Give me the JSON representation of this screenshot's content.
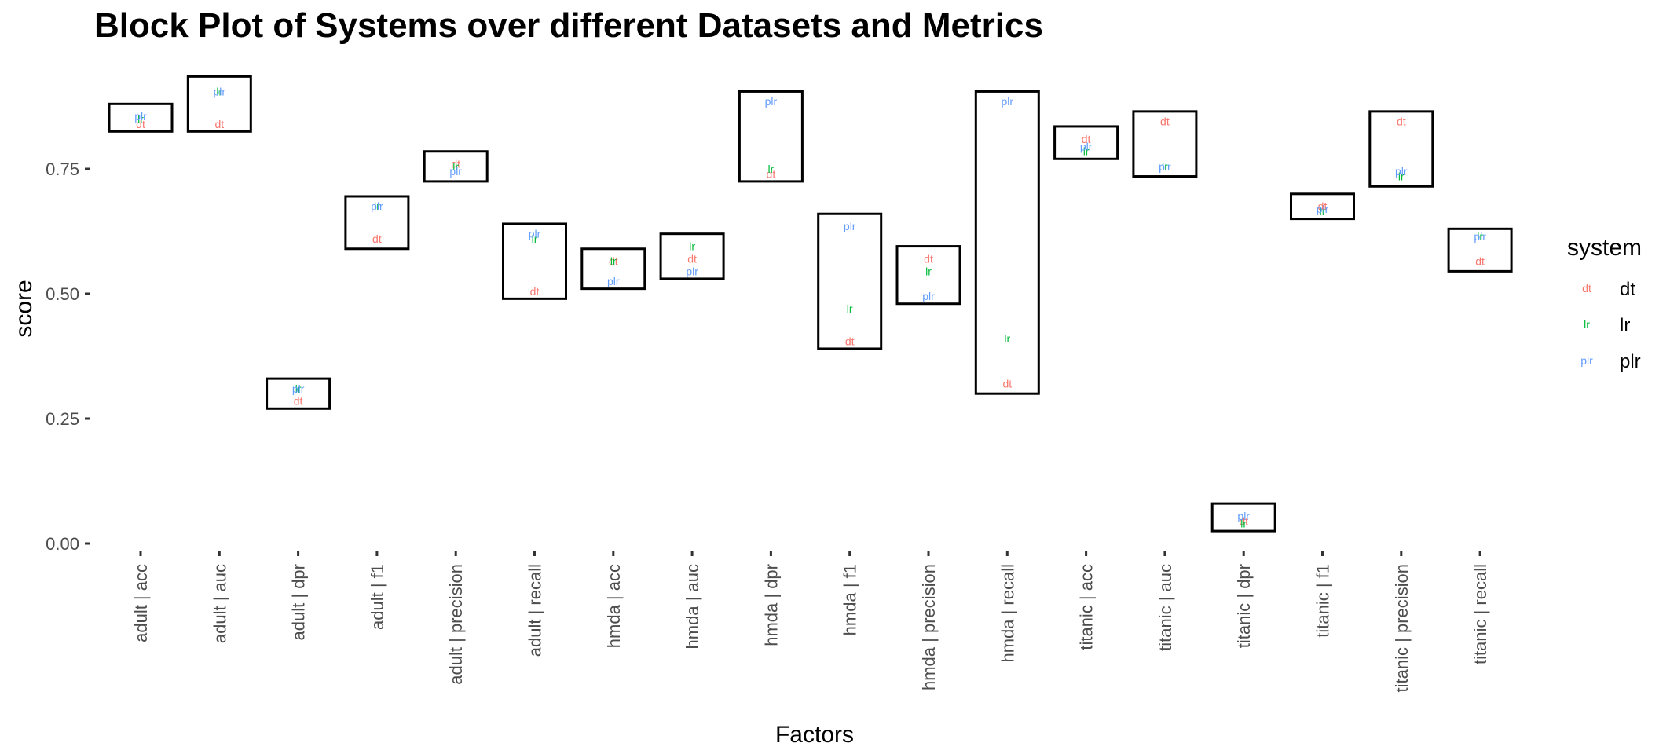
{
  "chart_data": {
    "type": "block",
    "title": "Block Plot of Systems over different Datasets and Metrics",
    "xlabel": "Factors",
    "ylabel": "score",
    "ylim": [
      0,
      0.95
    ],
    "y_ticks": [
      0.0,
      0.25,
      0.5,
      0.75
    ],
    "y_tick_labels": [
      "0.00",
      "0.25",
      "0.50",
      "0.75"
    ],
    "grid": false,
    "legend": {
      "title": "system",
      "placement": "right",
      "entries": [
        {
          "key": "dt",
          "label": "dt",
          "color": "#F8766D"
        },
        {
          "key": "lr",
          "label": "lr",
          "color": "#00BA38"
        },
        {
          "key": "plr",
          "label": "plr",
          "color": "#619CFF"
        }
      ]
    },
    "categories": [
      "adult | acc",
      "adult | auc",
      "adult | dpr",
      "adult | f1",
      "adult | precision",
      "adult | recall",
      "hmda | acc",
      "hmda | auc",
      "hmda | dpr",
      "hmda | f1",
      "hmda | precision",
      "hmda | recall",
      "titanic | acc",
      "titanic | auc",
      "titanic | dpr",
      "titanic | f1",
      "titanic | precision",
      "titanic | recall"
    ],
    "blocks": [
      [
        0.825,
        0.88
      ],
      [
        0.825,
        0.935
      ],
      [
        0.27,
        0.33
      ],
      [
        0.59,
        0.695
      ],
      [
        0.725,
        0.785
      ],
      [
        0.49,
        0.64
      ],
      [
        0.51,
        0.59
      ],
      [
        0.53,
        0.62
      ],
      [
        0.725,
        0.905
      ],
      [
        0.39,
        0.66
      ],
      [
        0.48,
        0.595
      ],
      [
        0.3,
        0.905
      ],
      [
        0.77,
        0.835
      ],
      [
        0.735,
        0.865
      ],
      [
        0.025,
        0.08
      ],
      [
        0.65,
        0.7
      ],
      [
        0.715,
        0.865
      ],
      [
        0.545,
        0.63
      ]
    ],
    "series": [
      {
        "name": "dt",
        "values": [
          0.84,
          0.84,
          0.285,
          0.61,
          0.76,
          0.505,
          0.565,
          0.57,
          0.74,
          0.405,
          0.57,
          0.32,
          0.81,
          0.845,
          0.045,
          0.675,
          0.845,
          0.565
        ]
      },
      {
        "name": "lr",
        "values": [
          0.85,
          0.905,
          0.31,
          0.675,
          0.755,
          0.61,
          0.565,
          0.595,
          0.75,
          0.47,
          0.545,
          0.41,
          0.785,
          0.755,
          0.04,
          0.665,
          0.735,
          0.615
        ]
      },
      {
        "name": "plr",
        "values": [
          0.855,
          0.905,
          0.31,
          0.675,
          0.745,
          0.62,
          0.525,
          0.545,
          0.885,
          0.635,
          0.495,
          0.885,
          0.795,
          0.755,
          0.055,
          0.67,
          0.745,
          0.615
        ]
      }
    ]
  }
}
